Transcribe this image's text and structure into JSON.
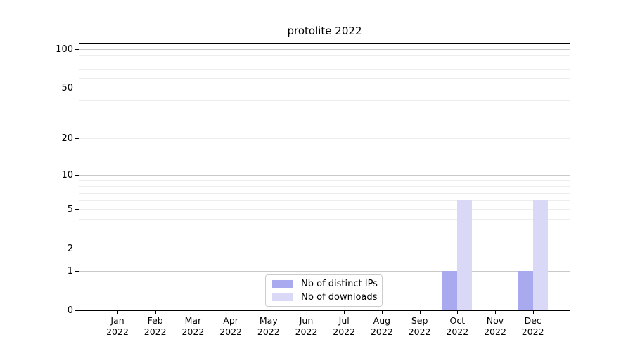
{
  "chart_data": {
    "type": "bar",
    "title": "protolite 2022",
    "months": [
      "Jan",
      "Feb",
      "Mar",
      "Apr",
      "May",
      "Jun",
      "Jul",
      "Aug",
      "Sep",
      "Oct",
      "Nov",
      "Dec"
    ],
    "year": "2022",
    "categories": [
      "Jan 2022",
      "Feb 2022",
      "Mar 2022",
      "Apr 2022",
      "May 2022",
      "Jun 2022",
      "Jul 2022",
      "Aug 2022",
      "Sep 2022",
      "Oct 2022",
      "Nov 2022",
      "Dec 2022"
    ],
    "series": [
      {
        "name": "Nb of distinct IPs",
        "color": "#a9a9f0",
        "values": [
          0,
          0,
          0,
          0,
          0,
          0,
          0,
          0,
          0,
          1,
          0,
          1
        ]
      },
      {
        "name": "Nb of downloads",
        "color": "#d9d9f7",
        "values": [
          0,
          0,
          0,
          0,
          0,
          0,
          0,
          0,
          0,
          6,
          0,
          6
        ]
      }
    ],
    "xlabel": "",
    "ylabel": "",
    "y_axis": {
      "scale": "log1p",
      "ticks": [
        0,
        1,
        2,
        5,
        10,
        20,
        50,
        100
      ],
      "ylim": [
        0,
        113
      ]
    },
    "grid": {
      "on": true,
      "orientation": "horizontal",
      "major_values": [
        1,
        10,
        100
      ],
      "minor_values": [
        2,
        3,
        4,
        5,
        6,
        7,
        8,
        9,
        20,
        30,
        40,
        50,
        60,
        70,
        80,
        90
      ],
      "major_color": "#c9c9c9",
      "minor_color": "#ededed"
    },
    "legend": {
      "position": "bottom-center-inside",
      "border_color": "#cccccc",
      "background": "#ffffff"
    },
    "colors": {
      "axis": "#000000",
      "background": "#ffffff",
      "text": "#000000"
    }
  }
}
